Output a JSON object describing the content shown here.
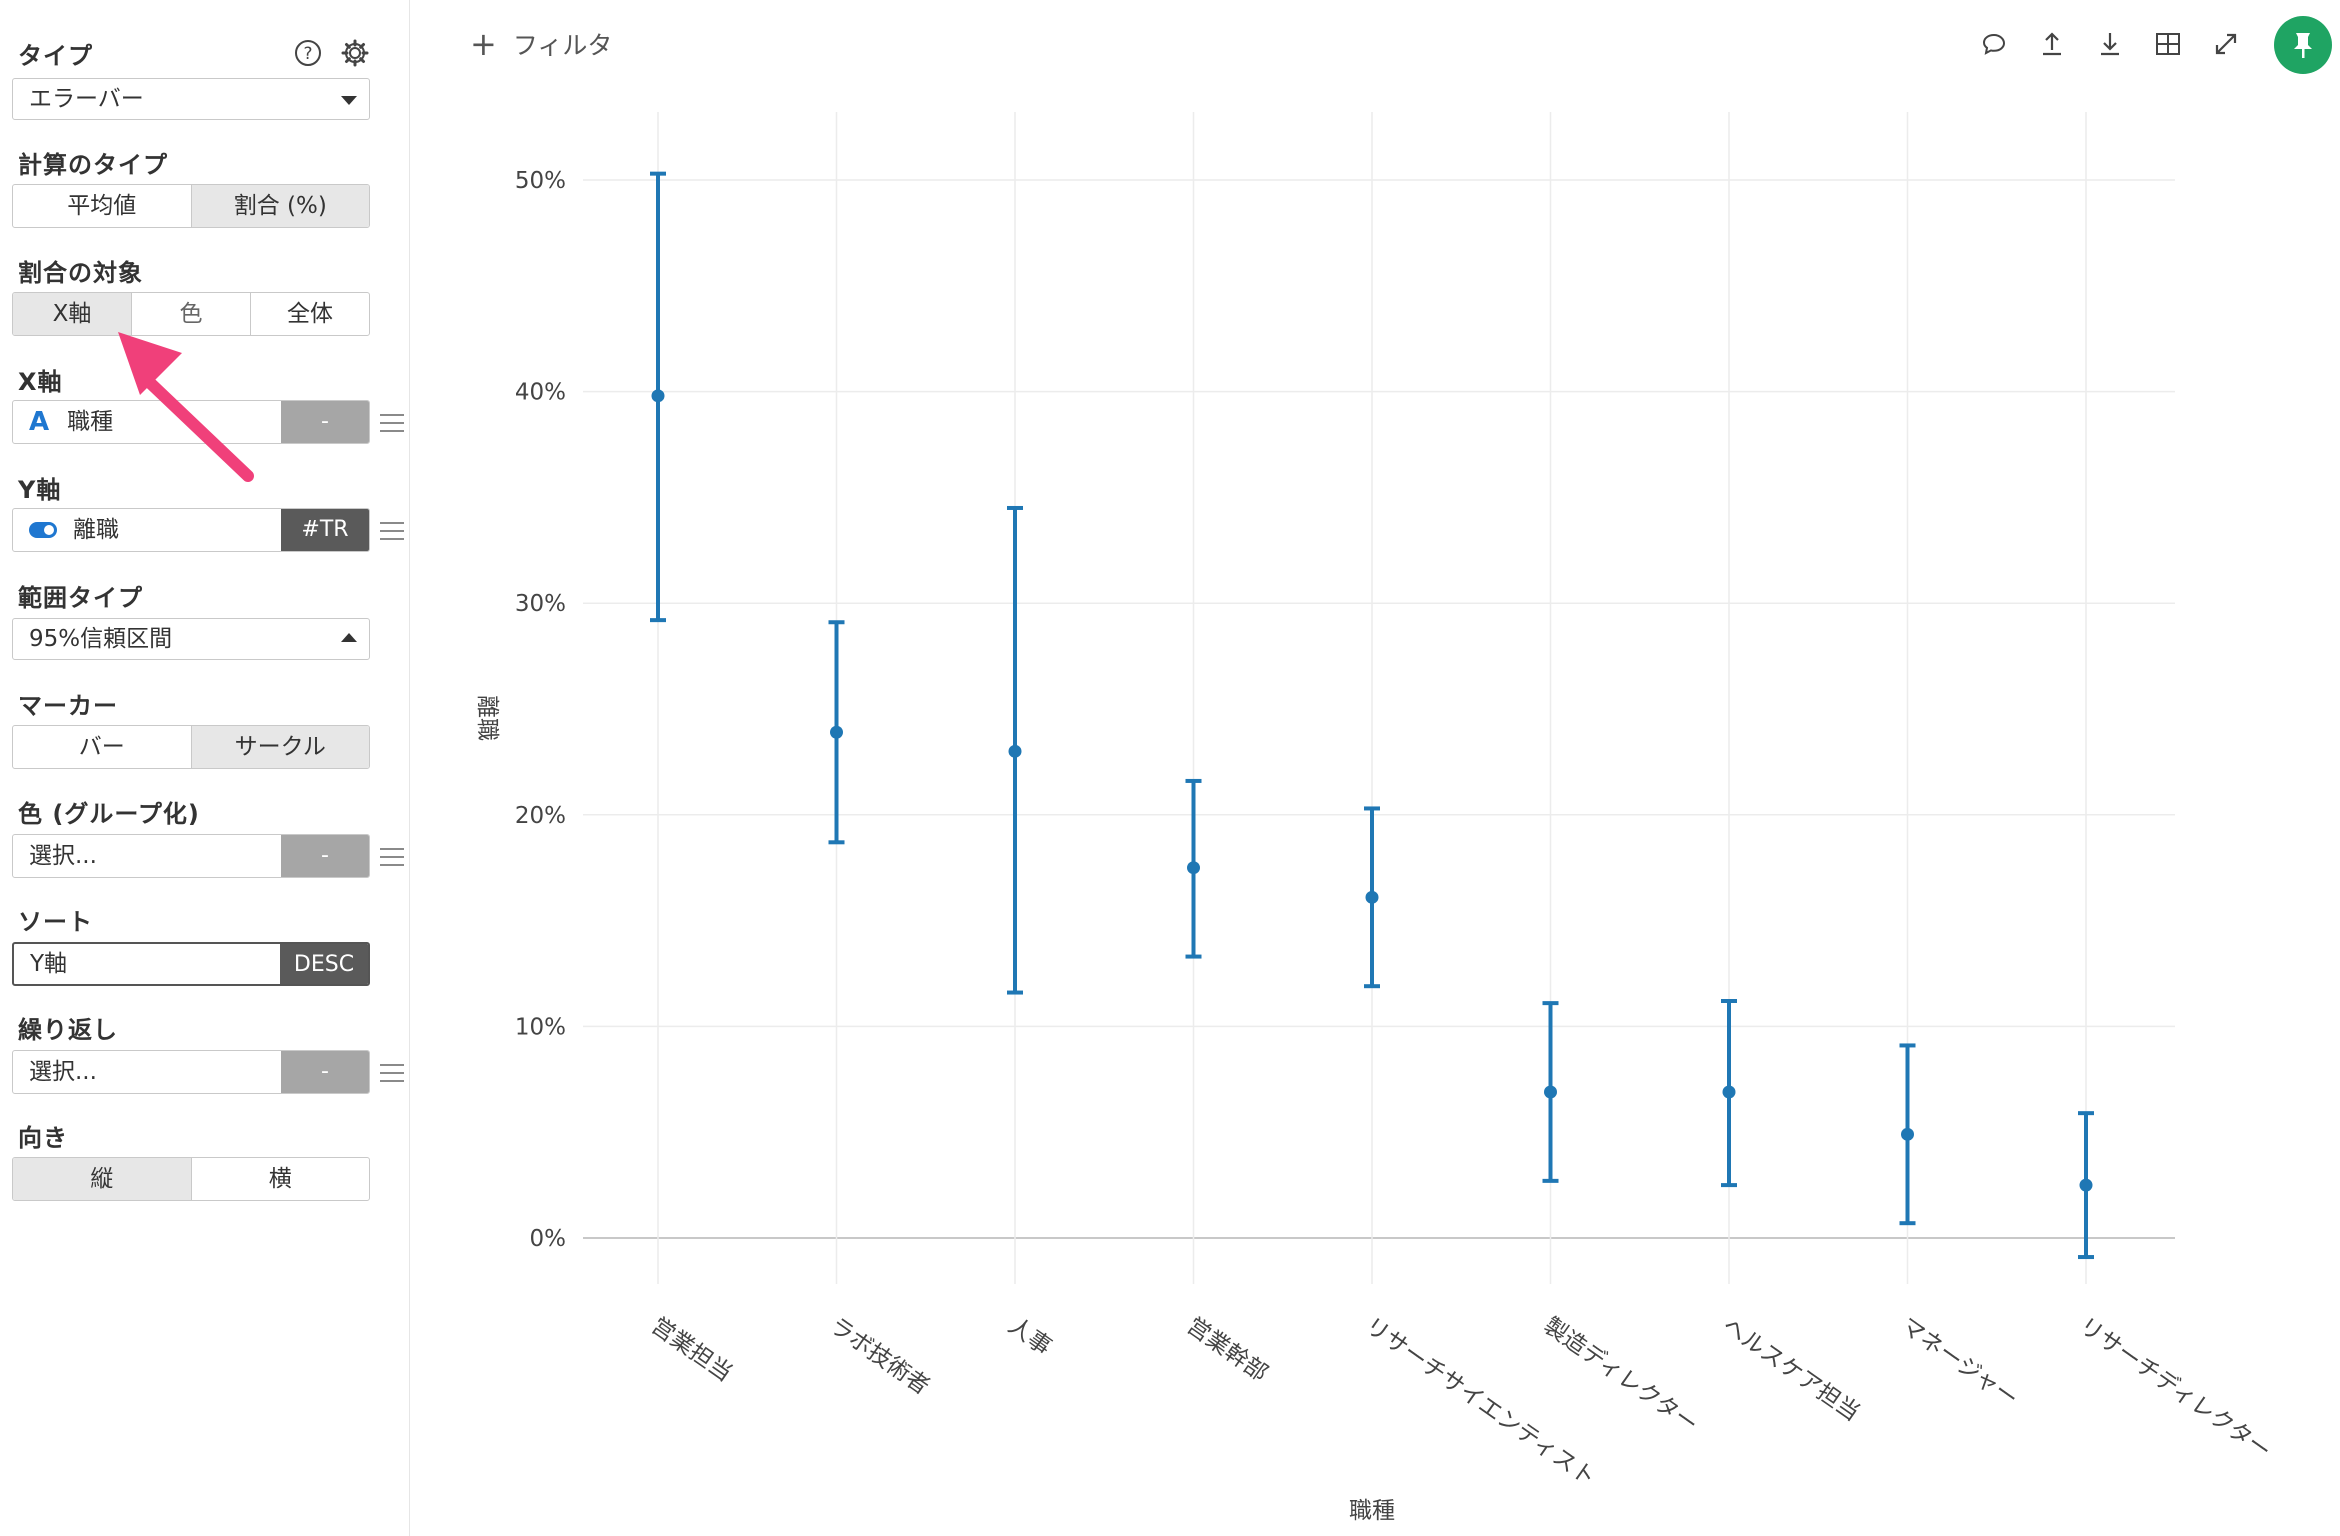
{
  "sidebar": {
    "type_label": "タイプ",
    "type_value": "エラーバー",
    "calc_label": "計算のタイプ",
    "calc_options": [
      "平均値",
      "割合 (%)"
    ],
    "target_label": "割合の対象",
    "target_options": [
      "X軸",
      "色",
      "全体"
    ],
    "x_label": "X軸",
    "x_value": "職種",
    "x_side": "-",
    "y_label": "Y軸",
    "y_value": "離職",
    "y_side": "#TR",
    "range_label": "範囲タイプ",
    "range_value": "95%信頼区間",
    "marker_label": "マーカー",
    "marker_options": [
      "バー",
      "サークル"
    ],
    "color_label": "色 (グループ化)",
    "color_value": "選択...",
    "color_side": "-",
    "sort_label": "ソート",
    "sort_value": "Y軸",
    "sort_side": "DESC",
    "repeat_label": "繰り返し",
    "repeat_value": "選択...",
    "repeat_side": "-",
    "orient_label": "向き",
    "orient_options": [
      "縦",
      "横"
    ]
  },
  "toolbar": {
    "filter_label": "フィルタ",
    "filter_plus": "+"
  },
  "colors": {
    "accent": "#1f77b4",
    "pin": "#1fa463",
    "arrow": "#f0407a"
  },
  "icons": [
    "help-icon",
    "gear-icon",
    "comment-icon",
    "upload-icon",
    "download-icon",
    "table-icon",
    "expand-icon",
    "pin-icon"
  ],
  "chart_data": {
    "type": "errorbar",
    "title": "",
    "xlabel": "職種",
    "ylabel": "離職",
    "yticks": [
      "0%",
      "10%",
      "20%",
      "30%",
      "40%",
      "50%"
    ],
    "ylim": [
      0,
      50
    ],
    "grid": true,
    "categories": [
      "営業担当",
      "ラボ技術者",
      "人事",
      "営業幹部",
      "リサーチサイエンティスト",
      "製造ディレクター",
      "ヘルスケア担当",
      "マネージャー",
      "リサーチディレクター"
    ],
    "values": [
      39.8,
      23.9,
      23.0,
      17.5,
      16.1,
      6.9,
      6.9,
      4.9,
      2.5
    ],
    "lower": [
      29.2,
      18.7,
      11.6,
      13.3,
      11.9,
      2.7,
      2.5,
      0.7,
      -0.9
    ],
    "upper": [
      50.3,
      29.1,
      34.5,
      21.6,
      20.3,
      11.1,
      11.2,
      9.1,
      5.9
    ]
  }
}
